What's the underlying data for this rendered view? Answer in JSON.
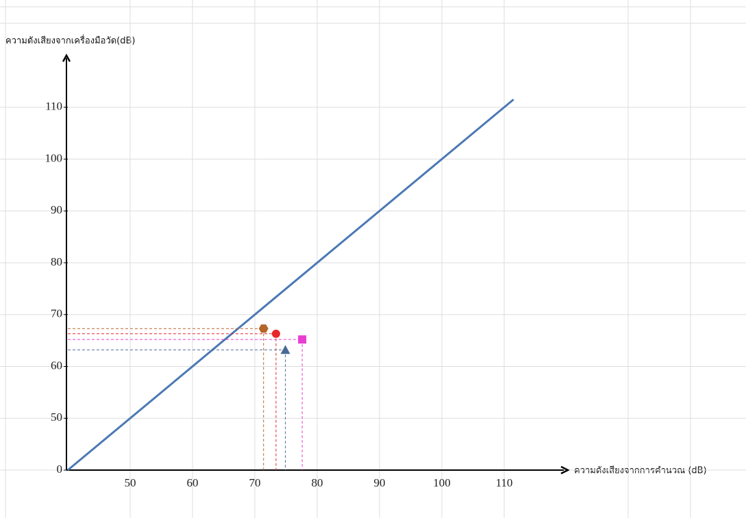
{
  "chart_data": {
    "type": "scatter",
    "y_label": "ความดังเสียงจากเครื่องมือวัด(dB)",
    "x_label": "ความดังเสียงจากการคำนวณ (dB)",
    "xlim": [
      40,
      120
    ],
    "ylim": [
      40,
      120
    ],
    "xticks": [
      50,
      60,
      70,
      80,
      90,
      100,
      110
    ],
    "yticks": [
      {
        "value": 40,
        "label": "0"
      },
      50,
      60,
      70,
      80,
      90,
      100,
      110
    ],
    "grid": true,
    "line": {
      "color": "#4a78b4",
      "x": [
        40,
        111.5
      ],
      "y": [
        40,
        111.5
      ]
    },
    "points": [
      {
        "x": 71.4,
        "y": 67.3,
        "color": "#b5652a",
        "marker": "hexagon"
      },
      {
        "x": 73.4,
        "y": 66.3,
        "color": "#e8262a",
        "marker": "circle"
      },
      {
        "x": 77.6,
        "y": 65.2,
        "color": "#e83fd0",
        "marker": "square"
      },
      {
        "x": 74.9,
        "y": 63.2,
        "color": "#4a6a96",
        "marker": "triangle"
      }
    ]
  }
}
